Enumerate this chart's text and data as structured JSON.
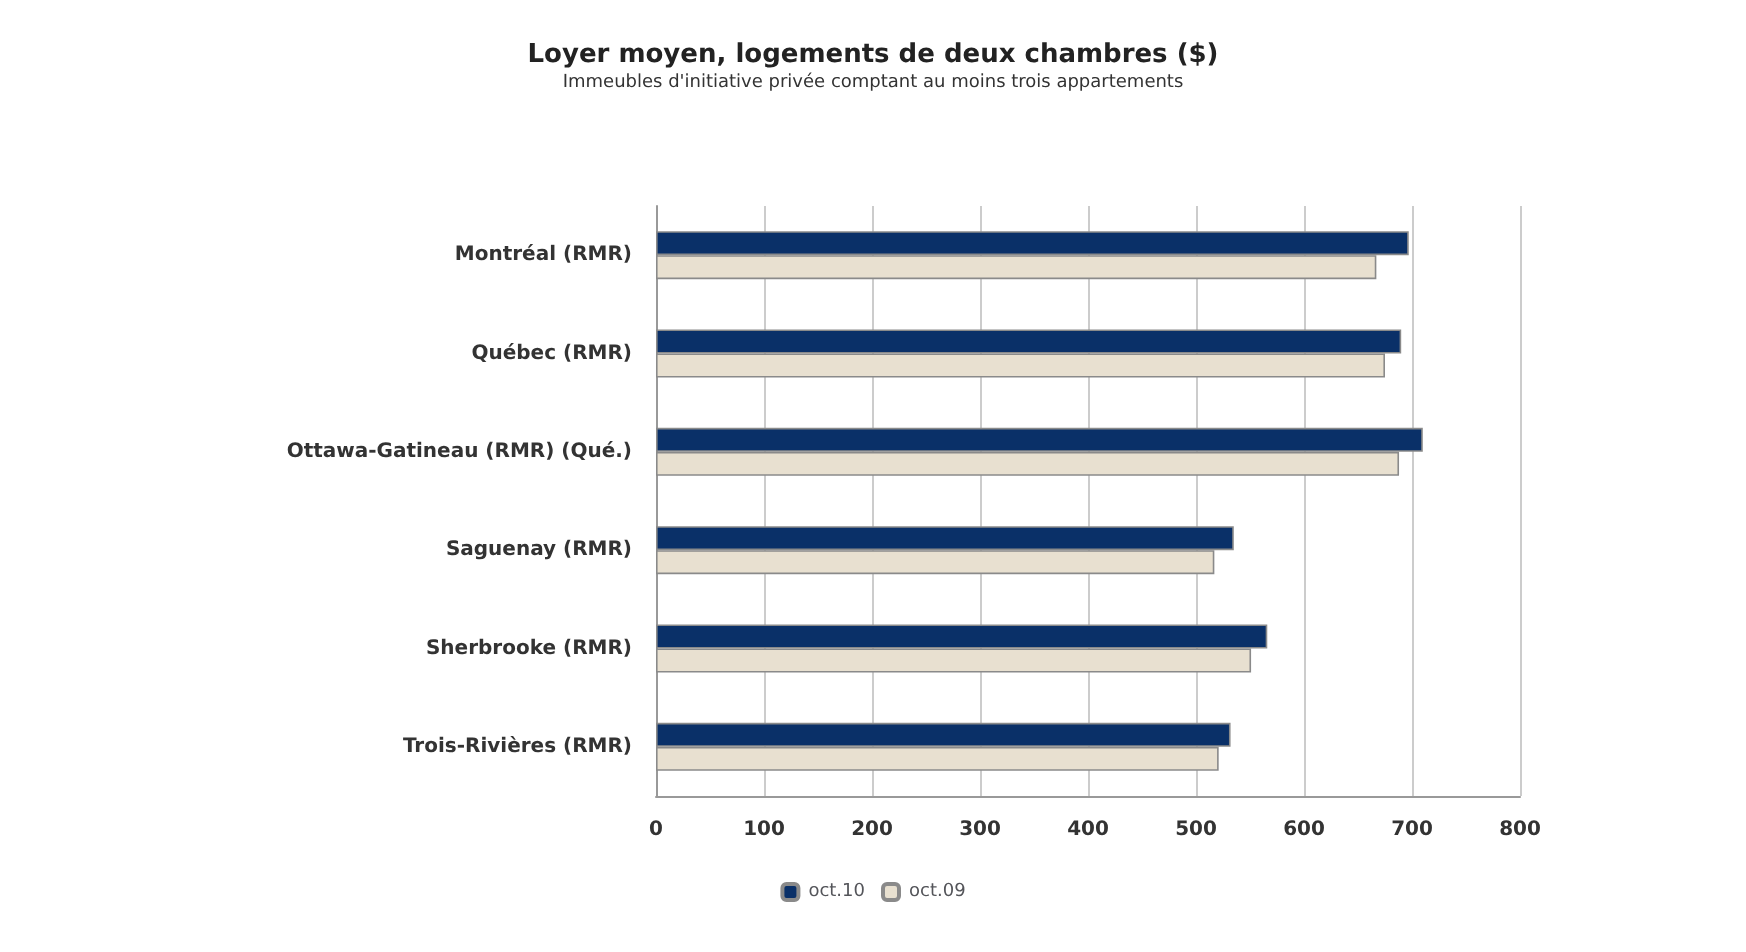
{
  "chart_data": {
    "type": "bar",
    "orientation": "horizontal",
    "title": "Loyer moyen, logements de deux chambres ($)",
    "subtitle": "Immeubles d'initiative privée comptant au moins trois appartements",
    "categories": [
      "Montréal (RMR)",
      "Québec (RMR)",
      "Ottawa-Gatineau (RMR) (Qué.)",
      "Saguenay (RMR)",
      "Sherbrooke (RMR)",
      "Trois-Rivières (RMR)"
    ],
    "series": [
      {
        "name": "oct.10",
        "color": "#0a3068",
        "values": [
          697,
          690,
          710,
          535,
          566,
          532
        ]
      },
      {
        "name": "oct.09",
        "color": "#e8e0d0",
        "values": [
          667,
          675,
          688,
          517,
          551,
          521
        ]
      }
    ],
    "xlim": [
      0,
      800
    ],
    "xticks": [
      0,
      100,
      200,
      300,
      400,
      500,
      600,
      700,
      800
    ],
    "grid": "x",
    "legend": "bottom"
  }
}
